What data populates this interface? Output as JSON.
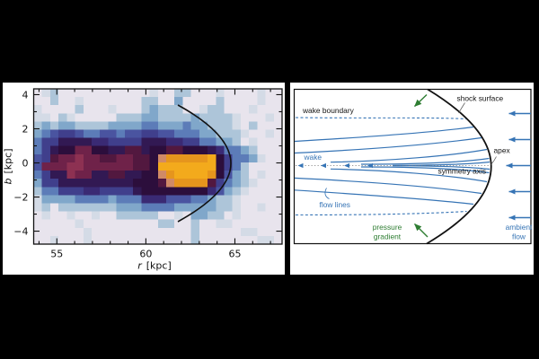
{
  "colors": {
    "background": "#000000",
    "panel_bg": "#ffffff",
    "ink": "#111111",
    "flow_blue": "#3674b5",
    "pressure_green": "#2e7d32",
    "axis_gray": "#777777"
  },
  "chart_data": [
    {
      "type": "heatmap",
      "panel": "left",
      "xlabel": "r [kpc]",
      "xlabel_var": "r",
      "xlabel_unit": "[kpc]",
      "ylabel": "b [kpc]",
      "ylabel_var": "b",
      "ylabel_unit": "[kpc]",
      "xlim": [
        53.7,
        67.65
      ],
      "ylim": [
        -4.76,
        4.34
      ],
      "x_major_ticks": [
        55,
        60,
        65
      ],
      "x_major_labels": [
        "55",
        "60",
        "65"
      ],
      "x_minor_ticks": [
        54,
        56,
        57,
        58,
        59,
        61,
        62,
        63,
        64,
        66,
        67
      ],
      "y_major_ticks": [
        4,
        2,
        0,
        -2,
        -4
      ],
      "y_major_labels": [
        "4",
        "2",
        "0",
        "−2",
        "−4"
      ],
      "y_minor_ticks": [
        3,
        1,
        -1,
        -3
      ],
      "grid": {
        "n_cols": 30,
        "n_rows": 19,
        "rows": [
          ".ab...........a..bb...a....a..",
          "..b..a.......bb..c....b....a..",
          "a....b...a...bcbbb..abb...a...",
          "aa.ba.....bbbccbbbbcbbbba...a.",
          "bcbccbbbbccccddcccdccbbba.b...",
          "cdeffeddeedeeffeedddccbbba..a.",
          "dffhhhhggffffhhhggffddccb.a...",
          "dfhiikkiihhjjhiijjiiihgddcb...",
          "efjkklkkjjkkjjinooooopifddca..",
          "ekkkllkkkkkkjjipppppppifdb....",
          "dfhhlkkhhjjhhiinoppppoiecb.a..",
          "cffhhhhhhhhhiiijnoooojfdcba...",
          "bddfffggffffhiiiiiiiigecba....",
          "accccddddcdddgggeeeddcbba.....",
          "ab.bbbbbbbcccddddcccccbba..a..",
          ".a..a..a..bbbbb..a.ccbb.a.....",
          ".....a.........bb..b..aa......",
          "......a............b.....aa...",
          "..a...a............b.......aa."
        ]
      },
      "palette": {
        ".": "#e8e4ed",
        "a": "#d4dbe6",
        "b": "#adc5d9",
        "c": "#80a7ca",
        "d": "#5c7cb8",
        "e": "#4a54a0",
        "f": "#403f8c",
        "g": "#3a2a74",
        "h": "#321953",
        "i": "#2c0e3c",
        "j": "#52183f",
        "k": "#6f2249",
        "l": "#8d3152",
        "n": "#d08a67",
        "o": "#e6951d",
        "p": "#f3aa1c"
      },
      "bow_shock_arc": {
        "from_r_b": [
          61.8,
          3.4
        ],
        "apex_r_b": [
          64.8,
          0.0
        ],
        "to_r_b": [
          61.8,
          -3.3
        ]
      }
    },
    {
      "type": "diagram",
      "panel": "right",
      "labels": {
        "wake_boundary": "wake boundary",
        "shock_surface": "shock surface",
        "apex": "apex",
        "symmetry_axis": "symmetry axis",
        "wake": "wake",
        "flow_lines": "flow lines",
        "pressure_line1": "pressure",
        "pressure_line2": "gradient",
        "ambient_line1": "ambient",
        "ambient_line2": "flow"
      },
      "label_colors": {
        "structure": "#111111",
        "flow": "#3674b5",
        "pressure_gradient": "#2e7d32"
      },
      "elements": [
        "black parabolic shock surface with apex at right",
        "blue dashed wake-boundary lines (top and bottom)",
        "ten blue flow lines converging into the wake along the symmetry axis",
        "dotted symmetry axis with four leftward blue arrowheads",
        "five blue ambient-flow arrows entering from the right",
        "two green pressure-gradient arrows pointing toward the flow interior"
      ]
    }
  ]
}
